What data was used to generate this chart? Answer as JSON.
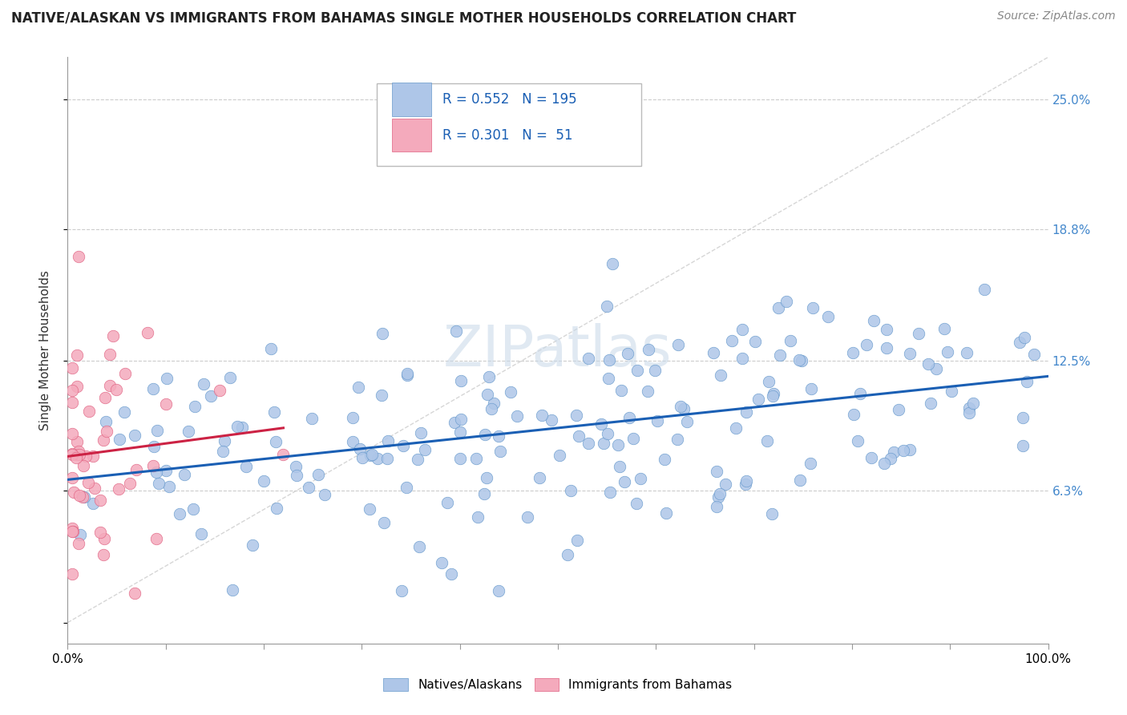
{
  "title": "NATIVE/ALASKAN VS IMMIGRANTS FROM BAHAMAS SINGLE MOTHER HOUSEHOLDS CORRELATION CHART",
  "source": "Source: ZipAtlas.com",
  "ylabel": "Single Mother Households",
  "yticks": [
    0.0,
    0.063,
    0.125,
    0.188,
    0.25
  ],
  "ytick_labels": [
    "",
    "6.3%",
    "12.5%",
    "18.8%",
    "25.0%"
  ],
  "xlim": [
    0.0,
    1.0
  ],
  "ylim": [
    -0.01,
    0.27
  ],
  "R_blue": 0.552,
  "N_blue": 195,
  "R_pink": 0.301,
  "N_pink": 51,
  "blue_color": "#aec6e8",
  "pink_color": "#f4aabc",
  "blue_edge": "#6699cc",
  "pink_edge": "#e06080",
  "trendline_blue": "#1a5fb4",
  "trendline_pink": "#cc2244",
  "diag_line_color": "#cccccc",
  "legend_label_blue": "Natives/Alaskans",
  "legend_label_pink": "Immigrants from Bahamas",
  "watermark": "ZIPatlas",
  "title_fontsize": 12,
  "source_fontsize": 10,
  "axis_label_fontsize": 11,
  "tick_label_color": "#4488cc",
  "legend_R_color": "#1a5fb4",
  "legend_N_color": "#cc2244"
}
